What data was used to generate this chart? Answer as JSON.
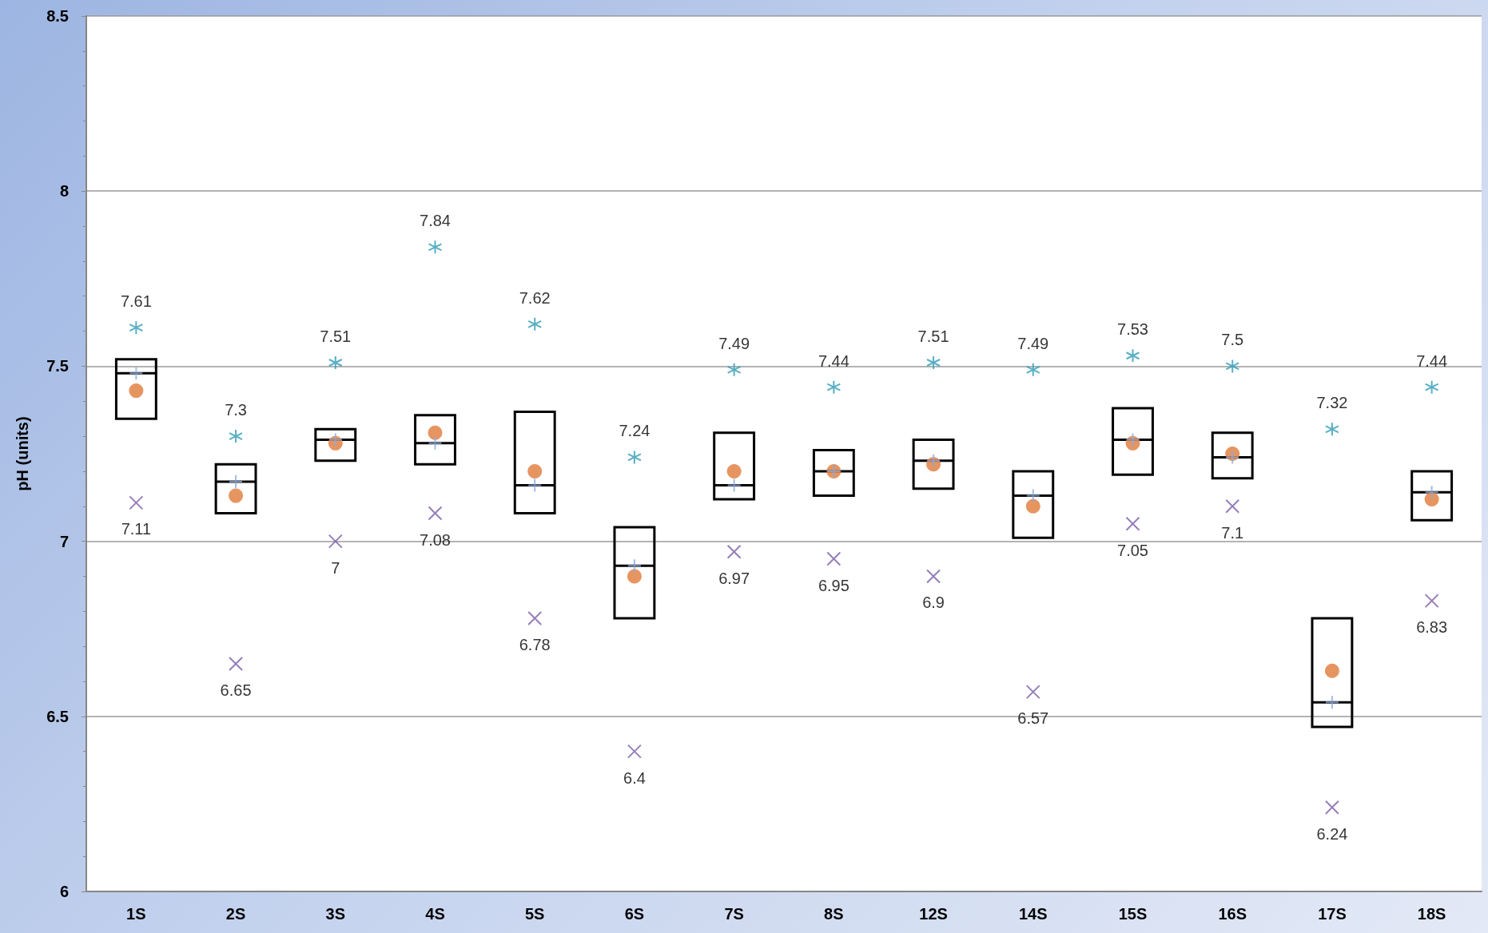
{
  "chart_data": {
    "type": "box",
    "ylabel": "pH (units)",
    "categories": [
      "1S",
      "2S",
      "3S",
      "4S",
      "5S",
      "6S",
      "7S",
      "8S",
      "12S",
      "14S",
      "15S",
      "16S",
      "17S",
      "18S"
    ],
    "series": [
      {
        "color": "#000000",
        "boxes": [
          {
            "low": 7.35,
            "q1": 7.35,
            "median": 7.48,
            "q3": 7.52,
            "high": 7.52,
            "mean": 7.43
          },
          {
            "low": 7.08,
            "q1": 7.08,
            "median": 7.17,
            "q3": 7.22,
            "high": 7.22,
            "mean": 7.13
          },
          {
            "low": 7.23,
            "q1": 7.23,
            "median": 7.29,
            "q3": 7.32,
            "high": 7.32,
            "mean": 7.28
          },
          {
            "low": 7.22,
            "q1": 7.22,
            "median": 7.28,
            "q3": 7.36,
            "high": 7.36,
            "mean": 7.31
          },
          {
            "low": 7.08,
            "q1": 7.08,
            "median": 7.16,
            "q3": 7.37,
            "high": 7.37,
            "mean": 7.2
          },
          {
            "low": 6.78,
            "q1": 6.78,
            "median": 6.93,
            "q3": 7.04,
            "high": 7.04,
            "mean": 6.9
          },
          {
            "low": 7.12,
            "q1": 7.12,
            "median": 7.16,
            "q3": 7.31,
            "high": 7.31,
            "mean": 7.2
          },
          {
            "low": 7.13,
            "q1": 7.13,
            "median": 7.2,
            "q3": 7.26,
            "high": 7.26,
            "mean": 7.2
          },
          {
            "low": 7.15,
            "q1": 7.15,
            "median": 7.23,
            "q3": 7.29,
            "high": 7.29,
            "mean": 7.22
          },
          {
            "low": 7.01,
            "q1": 7.01,
            "median": 7.13,
            "q3": 7.2,
            "high": 7.2,
            "mean": 7.1
          },
          {
            "low": 7.19,
            "q1": 7.19,
            "median": 7.29,
            "q3": 7.38,
            "high": 7.38,
            "mean": 7.28
          },
          {
            "low": 7.18,
            "q1": 7.18,
            "median": 7.24,
            "q3": 7.31,
            "high": 7.31,
            "mean": 7.25
          },
          {
            "low": 6.47,
            "q1": 6.47,
            "median": 6.54,
            "q3": 6.78,
            "high": 6.78,
            "mean": 6.63
          },
          {
            "low": 7.06,
            "q1": 7.06,
            "median": 7.14,
            "q3": 7.2,
            "high": 7.2,
            "mean": 7.12
          }
        ]
      },
      {
        "type": "scatter",
        "color": "#2e9bb5",
        "values": [
          7.61,
          7.3,
          7.51,
          7.84,
          7.62,
          7.24,
          7.49,
          7.44,
          7.51,
          7.49,
          7.53,
          7.5,
          7.32,
          7.44
        ],
        "value_labels": [
          "7.61",
          "7.3",
          "7.51",
          "7.84",
          "7.62",
          "7.24",
          "7.49",
          "7.44",
          "7.51",
          "7.49",
          "7.53",
          "7.5",
          "7.32",
          "7.44"
        ]
      },
      {
        "type": "scatter",
        "marker": "cross",
        "color": "#7a5ea8",
        "values": [
          7.11,
          6.65,
          7,
          7.08,
          6.78,
          6.4,
          6.97,
          6.95,
          6.9,
          6.57,
          7.05,
          7.1,
          6.24,
          6.83
        ],
        "value_labels": [
          "7.11",
          "6.65",
          "7",
          "7.08",
          "6.78",
          "6.4",
          "6.97",
          "6.95",
          "6.9",
          "6.57",
          "7.05",
          "7.1",
          "6.24",
          "6.83"
        ]
      }
    ],
    "ylim": [
      6,
      8.5
    ],
    "yticks": [
      6,
      6.5,
      7,
      7.5,
      8,
      8.5
    ],
    "grid": "y"
  }
}
